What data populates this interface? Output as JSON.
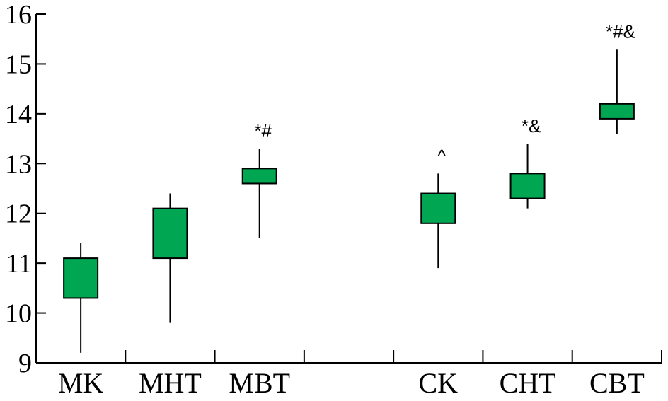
{
  "chart_data": {
    "type": "box",
    "title": "",
    "xlabel": "",
    "ylabel": "",
    "ylim": [
      9,
      16
    ],
    "yticks": [
      9,
      10,
      11,
      12,
      13,
      14,
      15,
      16
    ],
    "ytick_labels": [
      "9",
      "10",
      "11",
      "12",
      "13",
      "14",
      "15",
      "16"
    ],
    "box_color": "#00a651",
    "categories": [
      "MK",
      "MHT",
      "MBT",
      "",
      "CK",
      "CHT",
      "CBT"
    ],
    "boxes": [
      {
        "label": "MK",
        "whisker_low": 9.2,
        "q1": 10.3,
        "q3": 11.1,
        "whisker_high": 11.4,
        "annotation": ""
      },
      {
        "label": "MHT",
        "whisker_low": 9.8,
        "q1": 11.1,
        "q3": 12.1,
        "whisker_high": 12.4,
        "annotation": ""
      },
      {
        "label": "MBT",
        "whisker_low": 11.5,
        "q1": 12.6,
        "q3": 12.9,
        "whisker_high": 13.3,
        "annotation": "*#"
      },
      {
        "label": "",
        "whisker_low": null,
        "q1": null,
        "q3": null,
        "whisker_high": null,
        "annotation": ""
      },
      {
        "label": "CK",
        "whisker_low": 10.9,
        "q1": 11.8,
        "q3": 12.4,
        "whisker_high": 12.8,
        "annotation": "^"
      },
      {
        "label": "CHT",
        "whisker_low": 12.1,
        "q1": 12.3,
        "q3": 12.8,
        "whisker_high": 13.4,
        "annotation": "*&"
      },
      {
        "label": "CBT",
        "whisker_low": 13.6,
        "q1": 13.9,
        "q3": 14.2,
        "whisker_high": 15.3,
        "annotation": "*#&"
      }
    ]
  }
}
